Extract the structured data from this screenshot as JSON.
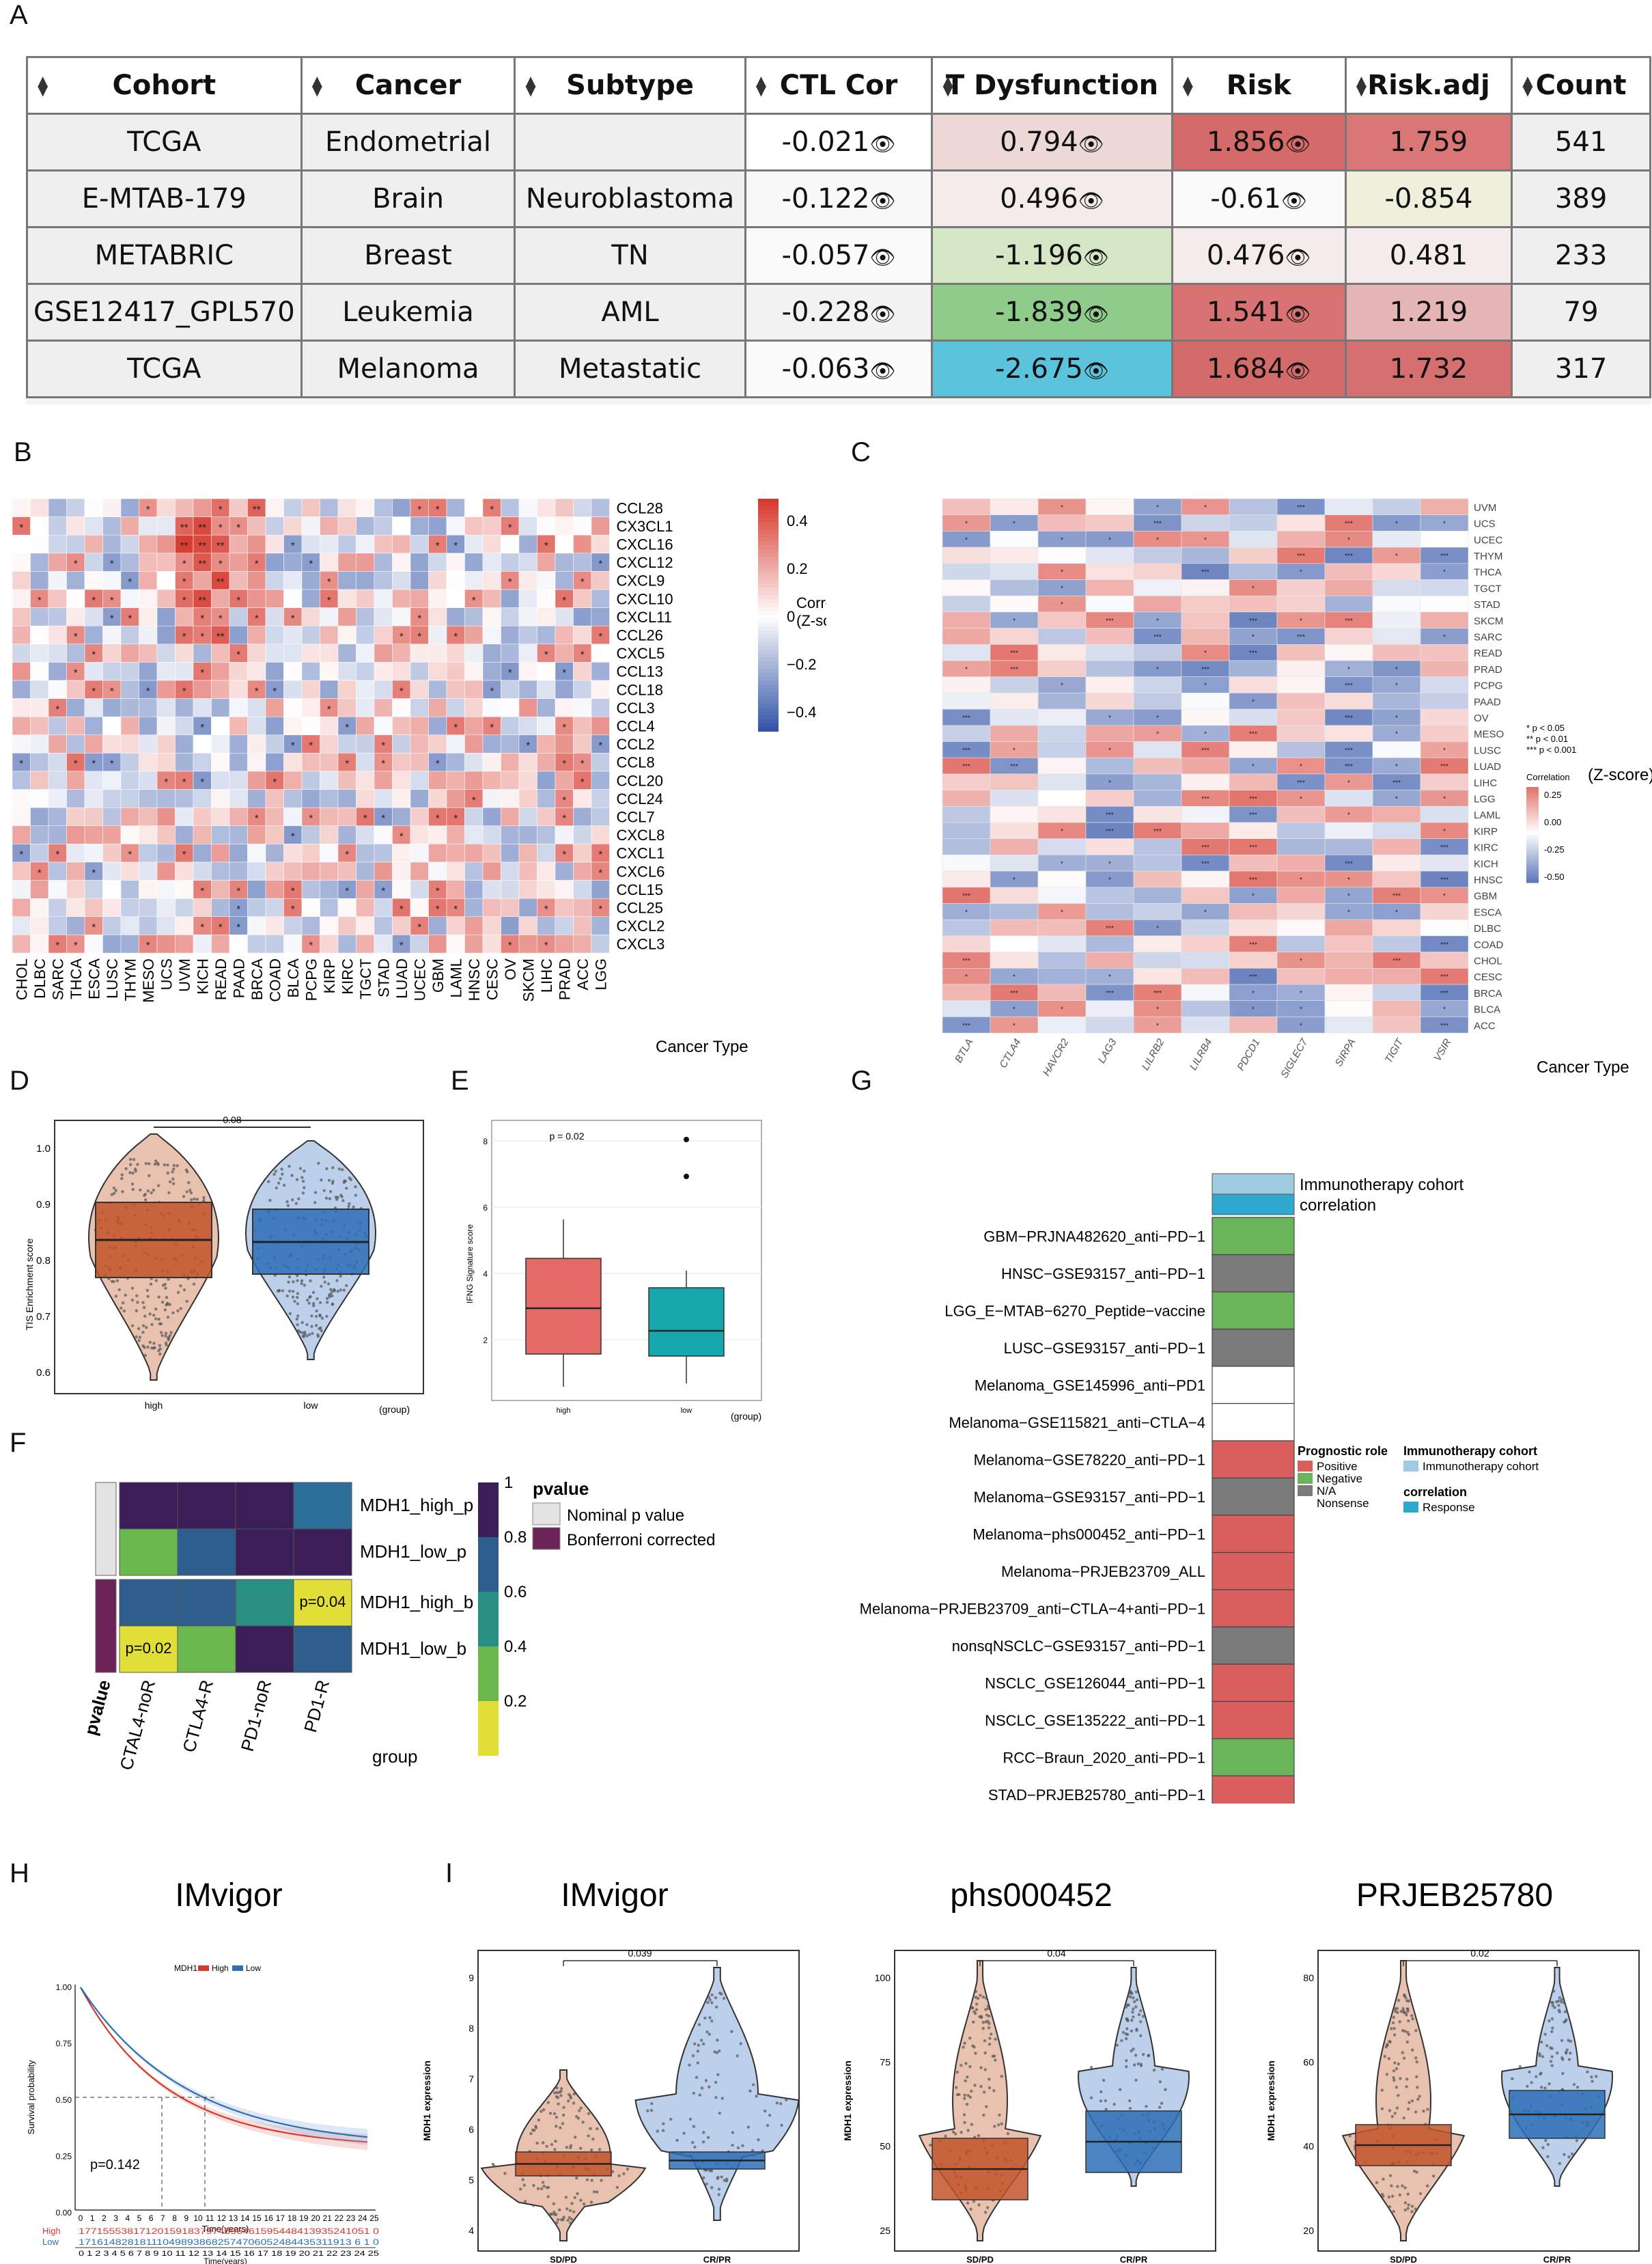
{
  "panel_labels": {
    "A": "A",
    "B": "B",
    "C": "C",
    "D": "D",
    "E": "E",
    "F": "F",
    "G": "G",
    "H": "H",
    "I": "I"
  },
  "table": {
    "headers": [
      "Cohort",
      "Cancer",
      "Subtype",
      "CTL Cor",
      "T Dysfunction",
      "Risk",
      "Risk.adj",
      "Count"
    ],
    "rows": [
      {
        "cohort": "TCGA",
        "cancer": "Endometrial",
        "subtype": "",
        "ctl": "-0.021",
        "tdys": "0.794",
        "risk": "1.856",
        "riskadj": "1.759",
        "count": "541",
        "c_ctl": "#ffffff",
        "c_tdys": "#ecd9d6",
        "c_risk": "#d46a6a",
        "c_riskadj": "#d97676"
      },
      {
        "cohort": "E-MTAB-179",
        "cancer": "Brain",
        "subtype": "Neuroblastoma",
        "ctl": "-0.122",
        "tdys": "0.496",
        "risk": "-0.61",
        "riskadj": "-0.854",
        "count": "389",
        "c_ctl": "#f8f8f8",
        "c_tdys": "#f3ecea",
        "c_risk": "#fafafa",
        "c_riskadj": "#eef0dc"
      },
      {
        "cohort": "METABRIC",
        "cancer": "Breast",
        "subtype": "TN",
        "ctl": "-0.057",
        "tdys": "-1.196",
        "risk": "0.476",
        "riskadj": "0.481",
        "count": "233",
        "c_ctl": "#fbfbfb",
        "c_tdys": "#d4e6c4",
        "c_risk": "#f4ecea",
        "c_riskadj": "#f4ecea"
      },
      {
        "cohort": "GSE12417_GPL570",
        "cancer": "Leukemia",
        "subtype": "AML",
        "ctl": "-0.228",
        "tdys": "-1.839",
        "risk": "1.541",
        "riskadj": "1.219",
        "count": "79",
        "c_ctl": "#f2f2f2",
        "c_tdys": "#8fcc8c",
        "c_risk": "#d87272",
        "c_riskadj": "#e6b6b6"
      },
      {
        "cohort": "TCGA",
        "cancer": "Melanoma",
        "subtype": "Metastatic",
        "ctl": "-0.063",
        "tdys": "-2.675",
        "risk": "1.684",
        "riskadj": "1.732",
        "count": "317",
        "c_ctl": "#fbfbfb",
        "c_tdys": "#5bc3dc",
        "c_risk": "#d46b6b",
        "c_riskadj": "#d67070"
      }
    ]
  },
  "panelB": {
    "rows": [
      "CCL28",
      "CX3CL1",
      "CXCL16",
      "CXCL12",
      "CXCL9",
      "CXCL10",
      "CXCL11",
      "CCL26",
      "CXCL5",
      "CCL13",
      "CCL18",
      "CCL3",
      "CCL4",
      "CCL2",
      "CCL8",
      "CCL20",
      "CCL24",
      "CCL7",
      "CXCL8",
      "CXCL1",
      "CXCL6",
      "CCL15",
      "CCL25",
      "CXCL2",
      "CXCL3"
    ],
    "cols": [
      "CHOL",
      "DLBC",
      "SARC",
      "THCA",
      "ESCA",
      "LUSC",
      "THYM",
      "MESO",
      "UCS",
      "UVM",
      "KICH",
      "READ",
      "PAAD",
      "BRCA",
      "COAD",
      "BLCA",
      "PCPG",
      "KIRP",
      "KIRC",
      "TGCT",
      "STAD",
      "LUAD",
      "UCEC",
      "GBM",
      "LAML",
      "HNSC",
      "CESC",
      "OV",
      "SKCM",
      "LIHC",
      "PRAD",
      "ACC",
      "LGG"
    ],
    "legend_title": "Correlation (Z-score)",
    "legend_ticks": [
      "0.4",
      "0.2",
      "0",
      "−0.2",
      "−0.4"
    ],
    "xlabel": "Cancer Type"
  },
  "panelC": {
    "rows": [
      "UVM",
      "UCS",
      "UCEC",
      "THYM",
      "THCA",
      "TGCT",
      "STAD",
      "SKCM",
      "SARC",
      "READ",
      "PRAD",
      "PCPG",
      "PAAD",
      "OV",
      "MESO",
      "LUSC",
      "LUAD",
      "LIHC",
      "LGG",
      "LAML",
      "KIRP",
      "KIRC",
      "KICH",
      "HNSC",
      "GBM",
      "ESCA",
      "DLBC",
      "COAD",
      "CHOL",
      "CESC",
      "BRCA",
      "BLCA",
      "ACC"
    ],
    "cols": [
      "BTLA",
      "CTLA4",
      "HAVCR2",
      "LAG3",
      "LILRB2",
      "LILRB4",
      "PDCD1",
      "SIGLEC7",
      "SIRPA",
      "TIGIT",
      "VSIR"
    ],
    "sig_legend": [
      "* p < 0.05",
      "** p < 0.01",
      "*** p < 0.001"
    ],
    "legend_title": "Correlation",
    "legend_subtitle": "(Z-score)",
    "legend_ticks": [
      "0.25",
      "0.00",
      "-0.25",
      "-0.50"
    ],
    "xlabel": "Cancer Type"
  },
  "panelD": {
    "pvalue": "0.08",
    "ylabel": "TIS Enrichment score",
    "ticks": [
      "1.0",
      "0.9",
      "0.8",
      "0.7",
      "0.6"
    ],
    "groups": [
      "high",
      "low"
    ],
    "xlabel": "(group)"
  },
  "panelE": {
    "pvalue": "p = 0.02",
    "ylabel": "IFNG Signature score",
    "ticks": [
      "8",
      "6",
      "4",
      "2"
    ],
    "groups": [
      "high",
      "low"
    ],
    "xlabel": "(group)"
  },
  "panelF": {
    "rows": [
      "MDH1_high_p",
      "MDH1_low_p",
      "MDH1_high_b",
      "MDH1_low_b"
    ],
    "cols": [
      "CTAL4-noR",
      "CTLA4-R",
      "PD1-noR",
      "PD1-R"
    ],
    "xlabel": "group",
    "side_label": "pvalue",
    "annot_b_pd1r": "p=0.04",
    "annot_b_ctla": "p=0.02",
    "scale_ticks": [
      "1",
      "0.8",
      "0.6",
      "0.4",
      "0.2"
    ],
    "legend_title": "pvalue",
    "legend_items": [
      "Nominal p value",
      "Bonferroni corrected"
    ]
  },
  "panelG": {
    "header": [
      "Immunotherapy cohort",
      "correlation"
    ],
    "cohorts": [
      {
        "name": "GBM−PRJNA482620_anti−PD−1",
        "color": "#6ab45a"
      },
      {
        "name": "HNSC−GSE93157_anti−PD−1",
        "color": "#7a7a7a"
      },
      {
        "name": "LGG_E−MTAB−6270_Peptide−vaccine",
        "color": "#6ab45a"
      },
      {
        "name": "LUSC−GSE93157_anti−PD−1",
        "color": "#7a7a7a"
      },
      {
        "name": "Melanoma_GSE145996_anti−PD1",
        "color": "#ffffff"
      },
      {
        "name": "Melanoma−GSE115821_anti−CTLA−4",
        "color": "#ffffff"
      },
      {
        "name": "Melanoma−GSE78220_anti−PD−1",
        "color": "#d95f5f"
      },
      {
        "name": "Melanoma−GSE93157_anti−PD−1",
        "color": "#7a7a7a"
      },
      {
        "name": "Melanoma−phs000452_anti−PD−1",
        "color": "#d95f5f"
      },
      {
        "name": "Melanoma−PRJEB23709_ALL",
        "color": "#d95f5f"
      },
      {
        "name": "Melanoma−PRJEB23709_anti−CTLA−4+anti−PD−1",
        "color": "#d95f5f"
      },
      {
        "name": "nonsqNSCLC−GSE93157_anti−PD−1",
        "color": "#7a7a7a"
      },
      {
        "name": "NSCLC_GSE126044_anti−PD−1",
        "color": "#d95f5f"
      },
      {
        "name": "NSCLC_GSE135222_anti−PD−1",
        "color": "#d95f5f"
      },
      {
        "name": "RCC−Braun_2020_anti−PD−1",
        "color": "#6ab45a"
      },
      {
        "name": "STAD−PRJEB25780_anti−PD−1",
        "color": "#d95f5f"
      }
    ],
    "legend_prog_title": "Prognostic role",
    "legend_prog": [
      "Positive",
      "Negative",
      "N/A",
      "Nonsense"
    ],
    "legend_cohort_title": "Immunotherapy cohort",
    "legend_cohort_item": "Immunotherapy cohort",
    "legend_corr_title": "correlation",
    "legend_corr_item": "Response"
  },
  "panelH": {
    "title": "IMvigor",
    "legend": [
      "MDH1",
      "High",
      "Low"
    ],
    "pvalue": "p=0.142",
    "ylabel": "Survival probability",
    "xlabel": "Time(years)",
    "yticks": [
      "1.00",
      "0.75",
      "0.50",
      "0.25",
      "0.00"
    ],
    "xticks": [
      "0",
      "1",
      "2",
      "3",
      "4",
      "5",
      "6",
      "7",
      "8",
      "9",
      "10",
      "11",
      "12",
      "13",
      "14",
      "15",
      "16",
      "17",
      "18",
      "19",
      "20",
      "21",
      "22",
      "23",
      "24",
      "25"
    ],
    "risk_high_label": "High",
    "risk_low_label": "Low",
    "risk_high": "177155538171201591837974696461595448413935241051  0",
    "risk_low": "171614828181110498938682574706052484435311913 6  1  0",
    "risk_xlabel": "Time(years)"
  },
  "panelI": [
    {
      "title": "IMvigor",
      "pvalue": "0.039",
      "ylabel": "MDH1 expression",
      "ticks": [
        "9",
        "8",
        "7",
        "6",
        "5",
        "4"
      ],
      "groups": [
        "SD/PD",
        "CR/PR"
      ]
    },
    {
      "title": "phs000452",
      "pvalue": "0.04",
      "ylabel": "MDH1 expression",
      "ticks": [
        "100",
        "75",
        "50",
        "25"
      ],
      "groups": [
        "SD/PD",
        "CR/PR"
      ]
    },
    {
      "title": "PRJEB25780",
      "pvalue": "0.02",
      "ylabel": "MDH1 expression",
      "ticks": [
        "80",
        "60",
        "40",
        "20"
      ],
      "groups": [
        "SD/PD",
        "CR/PR"
      ]
    }
  ],
  "colors": {
    "red": "#d7392e",
    "blue": "#2d4fa5",
    "orange": "#c1532a",
    "lightblue": "#9db7dd",
    "teal": "#16a8ad",
    "salmon": "#e36a66"
  }
}
